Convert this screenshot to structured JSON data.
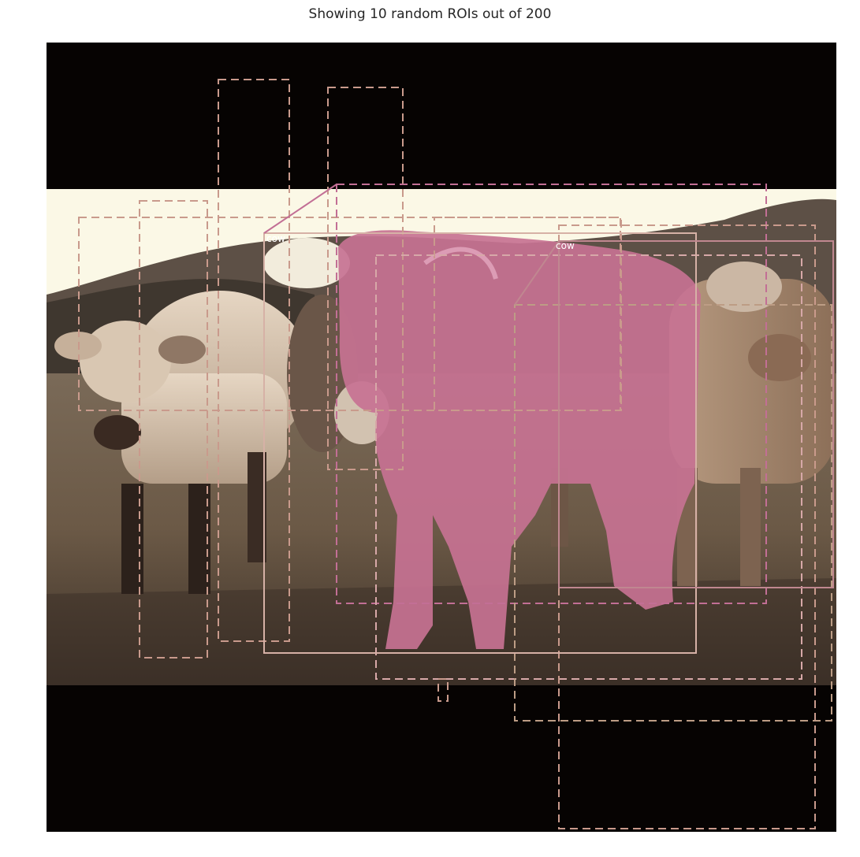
{
  "figure": {
    "title": "Showing 10 random ROIs out of 200"
  },
  "image": {
    "subject": "three cows standing in a grassy field with hills behind",
    "letterbox_color": "#060302",
    "sky_color": "#fbf8e6"
  },
  "rois": {
    "total": 200,
    "shown": 10,
    "labels": [
      "cow",
      "cow"
    ],
    "mask_color": "#c77292",
    "box_colors": [
      "#c99a8c",
      "#d7a8a8",
      "#c26f95",
      "#bd9d85"
    ]
  }
}
